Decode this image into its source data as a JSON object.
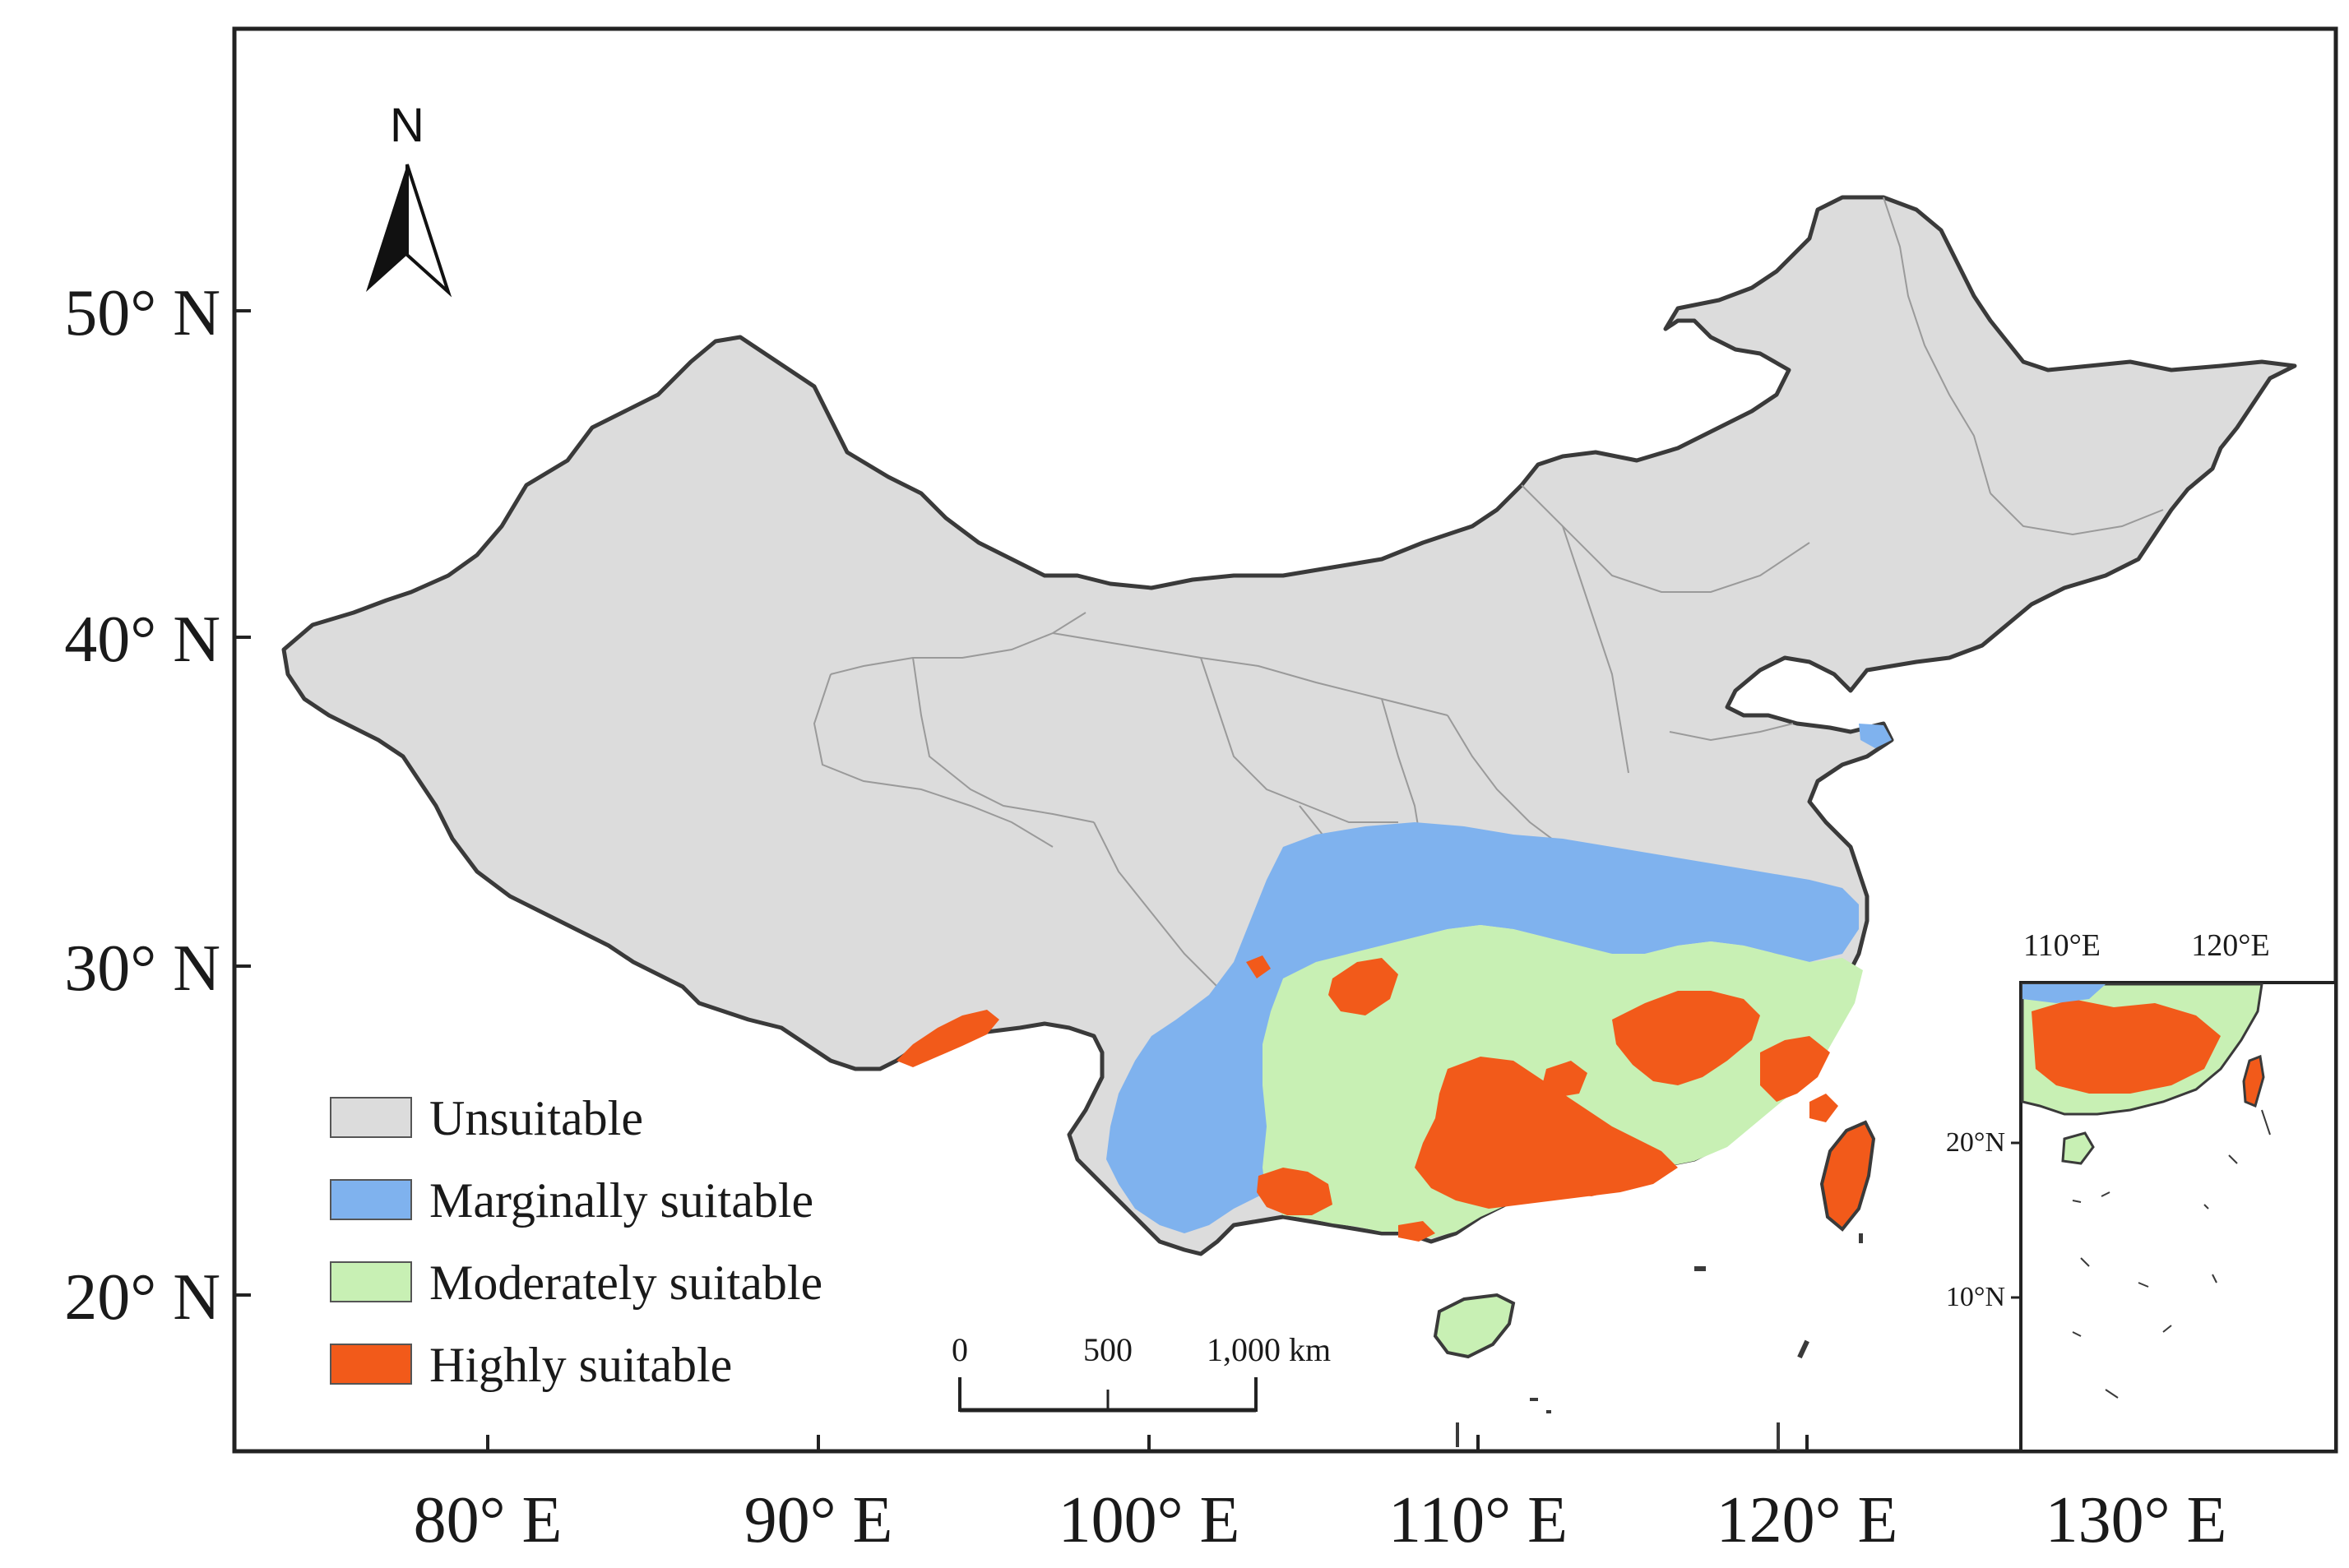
{
  "map": {
    "north_arrow_label": "N",
    "lat_ticks": [
      {
        "label": "50° N",
        "value": 50
      },
      {
        "label": "40° N",
        "value": 40
      },
      {
        "label": "30° N",
        "value": 30
      },
      {
        "label": "20° N",
        "value": 20
      }
    ],
    "lon_ticks": [
      {
        "label": "80° E",
        "value": 80
      },
      {
        "label": "90° E",
        "value": 90
      },
      {
        "label": "100° E",
        "value": 100
      },
      {
        "label": "110° E",
        "value": 110
      },
      {
        "label": "120° E",
        "value": 120
      },
      {
        "label": "130° E",
        "value": 130
      }
    ],
    "legend": [
      {
        "label": "Unsuitable",
        "color": "#dcdcdc"
      },
      {
        "label": "Marginally suitable",
        "color": "#7fb2ee"
      },
      {
        "label": "Moderately suitable",
        "color": "#c8f0b4"
      },
      {
        "label": "Highly suitable",
        "color": "#f25a1a"
      }
    ],
    "scale_bar": {
      "labels": [
        "0",
        "500",
        "1,000 km"
      ]
    },
    "inset": {
      "lon_labels": [
        "110°E",
        "120°E"
      ],
      "lat_labels": [
        "20°N",
        "10°N"
      ]
    }
  }
}
